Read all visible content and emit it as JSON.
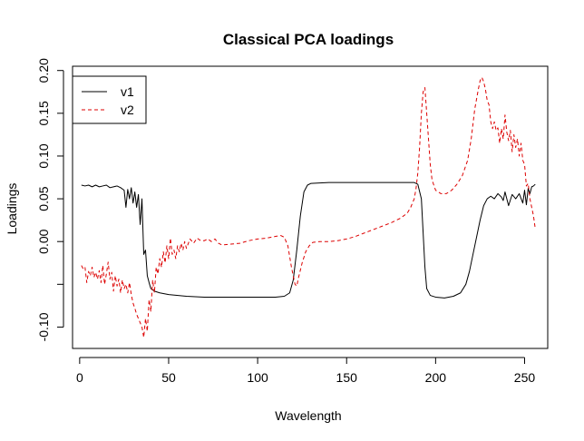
{
  "chart_data": {
    "type": "line",
    "title": "Classical PCA loadings",
    "xlabel": "Wavelength",
    "ylabel": "Loadings",
    "xlim": [
      -4,
      263
    ],
    "ylim": [
      -0.125,
      0.205
    ],
    "x_ticks": [
      0,
      50,
      100,
      150,
      200,
      250
    ],
    "x_tick_labels": [
      "0",
      "50",
      "100",
      "150",
      "200",
      "250"
    ],
    "y_ticks": [
      -0.1,
      -0.05,
      0.0,
      0.05,
      0.1,
      0.15,
      0.2
    ],
    "y_tick_labels": [
      "-0.10",
      "",
      "0.00",
      "0.05",
      "0.10",
      "0.15",
      "0.20"
    ],
    "legend": {
      "position": "top-left",
      "box": true
    },
    "series": [
      {
        "name": "v1",
        "color": "#000000",
        "dash": "solid",
        "points": [
          [
            1,
            0.066
          ],
          [
            3,
            0.065
          ],
          [
            5,
            0.066
          ],
          [
            7,
            0.064
          ],
          [
            9,
            0.066
          ],
          [
            11,
            0.064
          ],
          [
            13,
            0.065
          ],
          [
            15,
            0.066
          ],
          [
            17,
            0.063
          ],
          [
            19,
            0.064
          ],
          [
            21,
            0.065
          ],
          [
            23,
            0.063
          ],
          [
            25,
            0.06
          ],
          [
            26,
            0.04
          ],
          [
            27,
            0.061
          ],
          [
            28,
            0.05
          ],
          [
            29,
            0.063
          ],
          [
            30,
            0.045
          ],
          [
            31,
            0.058
          ],
          [
            32,
            0.04
          ],
          [
            33,
            0.055
          ],
          [
            34,
            0.02
          ],
          [
            35,
            0.05
          ],
          [
            36,
            -0.015
          ],
          [
            37,
            -0.01
          ],
          [
            38,
            -0.04
          ],
          [
            39,
            -0.048
          ],
          [
            40,
            -0.055
          ],
          [
            42,
            -0.058
          ],
          [
            45,
            -0.06
          ],
          [
            50,
            -0.062
          ],
          [
            60,
            -0.064
          ],
          [
            70,
            -0.065
          ],
          [
            80,
            -0.065
          ],
          [
            90,
            -0.065
          ],
          [
            100,
            -0.065
          ],
          [
            110,
            -0.065
          ],
          [
            115,
            -0.064
          ],
          [
            118,
            -0.06
          ],
          [
            120,
            -0.045
          ],
          [
            122,
            -0.01
          ],
          [
            124,
            0.03
          ],
          [
            126,
            0.058
          ],
          [
            128,
            0.066
          ],
          [
            130,
            0.068
          ],
          [
            140,
            0.069
          ],
          [
            150,
            0.069
          ],
          [
            160,
            0.069
          ],
          [
            170,
            0.069
          ],
          [
            180,
            0.069
          ],
          [
            188,
            0.069
          ],
          [
            190,
            0.067
          ],
          [
            192,
            0.05
          ],
          [
            193,
            0.01
          ],
          [
            194,
            -0.03
          ],
          [
            195,
            -0.055
          ],
          [
            197,
            -0.063
          ],
          [
            200,
            -0.065
          ],
          [
            205,
            -0.066
          ],
          [
            210,
            -0.064
          ],
          [
            214,
            -0.06
          ],
          [
            217,
            -0.05
          ],
          [
            219,
            -0.035
          ],
          [
            221,
            -0.015
          ],
          [
            223,
            0.005
          ],
          [
            225,
            0.025
          ],
          [
            227,
            0.042
          ],
          [
            229,
            0.05
          ],
          [
            231,
            0.053
          ],
          [
            233,
            0.05
          ],
          [
            235,
            0.056
          ],
          [
            237,
            0.052
          ],
          [
            238,
            0.048
          ],
          [
            239,
            0.058
          ],
          [
            241,
            0.042
          ],
          [
            243,
            0.055
          ],
          [
            245,
            0.05
          ],
          [
            247,
            0.056
          ],
          [
            249,
            0.045
          ],
          [
            250,
            0.06
          ],
          [
            251,
            0.043
          ],
          [
            252,
            0.062
          ],
          [
            253,
            0.056
          ],
          [
            254,
            0.064
          ],
          [
            255,
            0.065
          ],
          [
            256,
            0.067
          ]
        ]
      },
      {
        "name": "v2",
        "color": "#dd0000",
        "dash": "dashed",
        "points": [
          [
            1,
            -0.028
          ],
          [
            2,
            -0.032
          ],
          [
            3,
            -0.03
          ],
          [
            4,
            -0.048
          ],
          [
            5,
            -0.035
          ],
          [
            6,
            -0.04
          ],
          [
            7,
            -0.03
          ],
          [
            8,
            -0.042
          ],
          [
            9,
            -0.036
          ],
          [
            10,
            -0.044
          ],
          [
            11,
            -0.034
          ],
          [
            12,
            -0.048
          ],
          [
            13,
            -0.028
          ],
          [
            14,
            -0.05
          ],
          [
            15,
            -0.038
          ],
          [
            16,
            -0.024
          ],
          [
            17,
            -0.044
          ],
          [
            18,
            -0.036
          ],
          [
            19,
            -0.058
          ],
          [
            20,
            -0.04
          ],
          [
            21,
            -0.052
          ],
          [
            22,
            -0.044
          ],
          [
            23,
            -0.06
          ],
          [
            24,
            -0.045
          ],
          [
            25,
            -0.055
          ],
          [
            26,
            -0.05
          ],
          [
            27,
            -0.06
          ],
          [
            28,
            -0.048
          ],
          [
            29,
            -0.062
          ],
          [
            30,
            -0.072
          ],
          [
            31,
            -0.078
          ],
          [
            32,
            -0.085
          ],
          [
            33,
            -0.09
          ],
          [
            34,
            -0.095
          ],
          [
            35,
            -0.1
          ],
          [
            36,
            -0.112
          ],
          [
            37,
            -0.09
          ],
          [
            38,
            -0.105
          ],
          [
            39,
            -0.068
          ],
          [
            40,
            -0.082
          ],
          [
            41,
            -0.045
          ],
          [
            42,
            -0.06
          ],
          [
            43,
            -0.03
          ],
          [
            44,
            -0.038
          ],
          [
            45,
            -0.02
          ],
          [
            46,
            -0.03
          ],
          [
            47,
            -0.012
          ],
          [
            48,
            -0.025
          ],
          [
            49,
            -0.005
          ],
          [
            50,
            -0.02
          ],
          [
            51,
            0.004
          ],
          [
            52,
            -0.015
          ],
          [
            53,
            -0.01
          ],
          [
            54,
            -0.02
          ],
          [
            55,
            -0.005
          ],
          [
            56,
            -0.012
          ],
          [
            57,
            -0.002
          ],
          [
            58,
            -0.01
          ],
          [
            59,
            0.0
          ],
          [
            60,
            -0.008
          ],
          [
            62,
            0.003
          ],
          [
            64,
            -0.002
          ],
          [
            66,
            0.004
          ],
          [
            68,
            0.001
          ],
          [
            70,
            0.001
          ],
          [
            72,
            0.003
          ],
          [
            74,
            0.0
          ],
          [
            76,
            0.003
          ],
          [
            78,
            -0.002
          ],
          [
            80,
            -0.004
          ],
          [
            85,
            -0.003
          ],
          [
            90,
            -0.002
          ],
          [
            95,
            0.001
          ],
          [
            100,
            0.003
          ],
          [
            105,
            0.004
          ],
          [
            110,
            0.006
          ],
          [
            113,
            0.007
          ],
          [
            115,
            0.005
          ],
          [
            117,
            -0.005
          ],
          [
            119,
            -0.03
          ],
          [
            121,
            -0.05
          ],
          [
            122,
            -0.052
          ],
          [
            123,
            -0.042
          ],
          [
            125,
            -0.025
          ],
          [
            127,
            -0.012
          ],
          [
            129,
            -0.005
          ],
          [
            131,
            -0.001
          ],
          [
            135,
            0.0
          ],
          [
            140,
            0.0
          ],
          [
            145,
            0.001
          ],
          [
            150,
            0.003
          ],
          [
            155,
            0.006
          ],
          [
            160,
            0.01
          ],
          [
            165,
            0.014
          ],
          [
            170,
            0.018
          ],
          [
            175,
            0.022
          ],
          [
            180,
            0.027
          ],
          [
            184,
            0.033
          ],
          [
            186,
            0.04
          ],
          [
            188,
            0.05
          ],
          [
            189,
            0.062
          ],
          [
            190,
            0.08
          ],
          [
            191,
            0.11
          ],
          [
            192,
            0.15
          ],
          [
            193,
            0.175
          ],
          [
            194,
            0.18
          ],
          [
            195,
            0.15
          ],
          [
            196,
            0.12
          ],
          [
            197,
            0.09
          ],
          [
            198,
            0.072
          ],
          [
            200,
            0.06
          ],
          [
            203,
            0.056
          ],
          [
            206,
            0.056
          ],
          [
            209,
            0.06
          ],
          [
            212,
            0.067
          ],
          [
            215,
            0.077
          ],
          [
            218,
            0.095
          ],
          [
            220,
            0.12
          ],
          [
            222,
            0.155
          ],
          [
            224,
            0.178
          ],
          [
            225,
            0.188
          ],
          [
            226,
            0.192
          ],
          [
            227,
            0.187
          ],
          [
            228,
            0.178
          ],
          [
            229,
            0.165
          ],
          [
            230,
            0.16
          ],
          [
            231,
            0.14
          ],
          [
            232,
            0.132
          ],
          [
            233,
            0.14
          ],
          [
            234,
            0.13
          ],
          [
            235,
            0.133
          ],
          [
            236,
            0.115
          ],
          [
            237,
            0.132
          ],
          [
            238,
            0.12
          ],
          [
            239,
            0.148
          ],
          [
            240,
            0.128
          ],
          [
            241,
            0.118
          ],
          [
            242,
            0.13
          ],
          [
            243,
            0.105
          ],
          [
            244,
            0.125
          ],
          [
            245,
            0.11
          ],
          [
            246,
            0.12
          ],
          [
            247,
            0.1
          ],
          [
            248,
            0.115
          ],
          [
            249,
            0.095
          ],
          [
            250,
            0.09
          ],
          [
            251,
            0.065
          ],
          [
            252,
            0.068
          ],
          [
            253,
            0.05
          ],
          [
            254,
            0.04
          ],
          [
            255,
            0.03
          ],
          [
            256,
            0.015
          ]
        ]
      }
    ]
  }
}
